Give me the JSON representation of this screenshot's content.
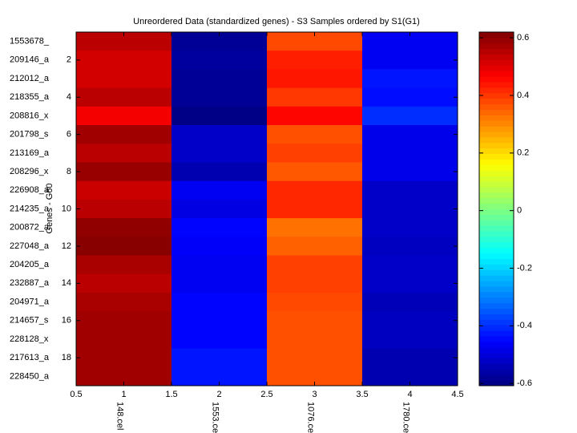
{
  "chart_data": {
    "type": "heatmap",
    "title": "Unreordered Data (standardized genes) - S3 Samples ordered by S1(G1)",
    "ylabel": "Genes - G60",
    "categories": [
      "148.cel",
      "1553.cel",
      "1076.cel",
      "1780.cel"
    ],
    "row_labels": [
      "1553678_",
      "209146_a",
      "212012_a",
      "218355_a",
      "208816_x",
      "201798_s",
      "213169_a",
      "208296_x",
      "226908_a",
      "214235_a",
      "200872_a",
      "227048_a",
      "204205_a",
      "232887_a",
      "204971_a",
      "214657_s",
      "228128_x",
      "217613_a",
      "228450_a"
    ],
    "values": [
      [
        0.55,
        -0.58,
        0.38,
        -0.47
      ],
      [
        0.52,
        -0.57,
        0.43,
        -0.47
      ],
      [
        0.52,
        -0.58,
        0.44,
        -0.43
      ],
      [
        0.55,
        -0.58,
        0.4,
        -0.44
      ],
      [
        0.48,
        -0.6,
        0.46,
        -0.4
      ],
      [
        0.58,
        -0.52,
        0.37,
        -0.48
      ],
      [
        0.55,
        -0.52,
        0.39,
        -0.48
      ],
      [
        0.59,
        -0.55,
        0.36,
        -0.48
      ],
      [
        0.53,
        -0.47,
        0.42,
        -0.52
      ],
      [
        0.55,
        -0.49,
        0.42,
        -0.52
      ],
      [
        0.6,
        -0.45,
        0.33,
        -0.52
      ],
      [
        0.61,
        -0.46,
        0.35,
        -0.53
      ],
      [
        0.57,
        -0.47,
        0.39,
        -0.52
      ],
      [
        0.55,
        -0.47,
        0.39,
        -0.52
      ],
      [
        0.57,
        -0.45,
        0.38,
        -0.54
      ],
      [
        0.58,
        -0.45,
        0.37,
        -0.53
      ],
      [
        0.58,
        -0.45,
        0.37,
        -0.53
      ],
      [
        0.58,
        -0.43,
        0.37,
        -0.55
      ],
      [
        0.58,
        -0.43,
        0.37,
        -0.55
      ]
    ],
    "colormap": "jet",
    "xlim": [
      0.5,
      4.5
    ],
    "xticks": [
      0.5,
      1,
      1.5,
      2,
      2.5,
      3,
      3.5,
      4,
      4.5
    ],
    "ylim": [
      0.5,
      19.5
    ],
    "yticks": [
      2,
      4,
      6,
      8,
      10,
      12,
      14,
      16,
      18
    ],
    "clim": [
      -0.608,
      0.62
    ],
    "cticks": [
      -0.6,
      -0.4,
      -0.2,
      0,
      0.2,
      0.4,
      0.6
    ]
  }
}
